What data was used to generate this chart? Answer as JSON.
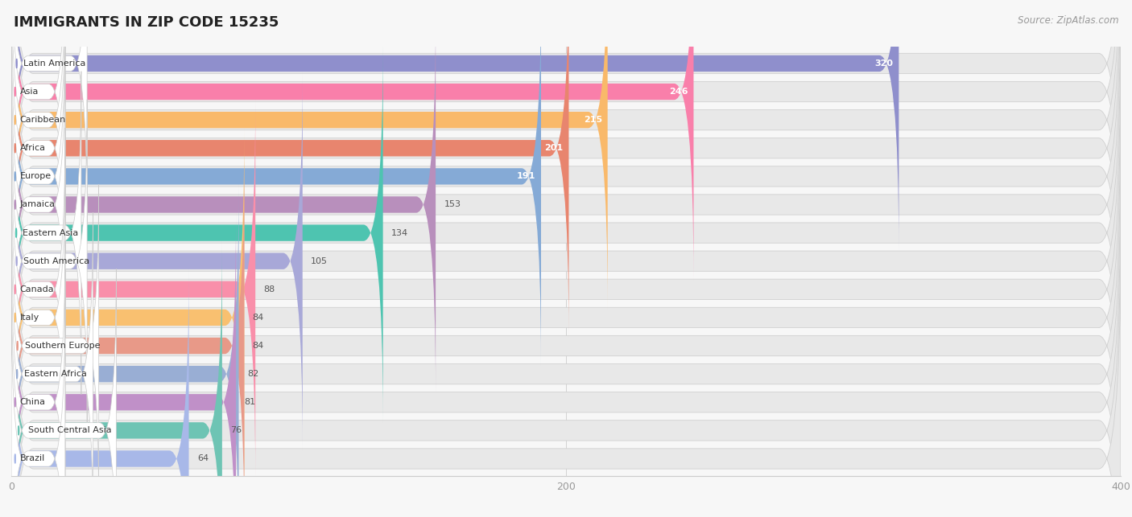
{
  "title": "IMMIGRANTS IN ZIP CODE 15235",
  "source": "Source: ZipAtlas.com",
  "categories": [
    "Latin America",
    "Asia",
    "Caribbean",
    "Africa",
    "Europe",
    "Jamaica",
    "Eastern Asia",
    "South America",
    "Canada",
    "Italy",
    "Southern Europe",
    "Eastern Africa",
    "China",
    "South Central Asia",
    "Brazil"
  ],
  "values": [
    320,
    246,
    215,
    201,
    191,
    153,
    134,
    105,
    88,
    84,
    84,
    82,
    81,
    76,
    64
  ],
  "colors": [
    "#8f8fcc",
    "#f97faa",
    "#f9b96a",
    "#e8856e",
    "#85aad6",
    "#b88fbc",
    "#4ec4b0",
    "#a8a8d8",
    "#f98faa",
    "#f9c070",
    "#e89988",
    "#99aed4",
    "#c090c8",
    "#6ec4b4",
    "#a8b8e8"
  ],
  "xlim": [
    0,
    400
  ],
  "xticks": [
    0,
    200,
    400
  ],
  "background_color": "#f7f7f7",
  "row_bg_color": "#eeeeee",
  "title_fontsize": 13,
  "source_fontsize": 8.5,
  "value_threshold_inside": 170
}
